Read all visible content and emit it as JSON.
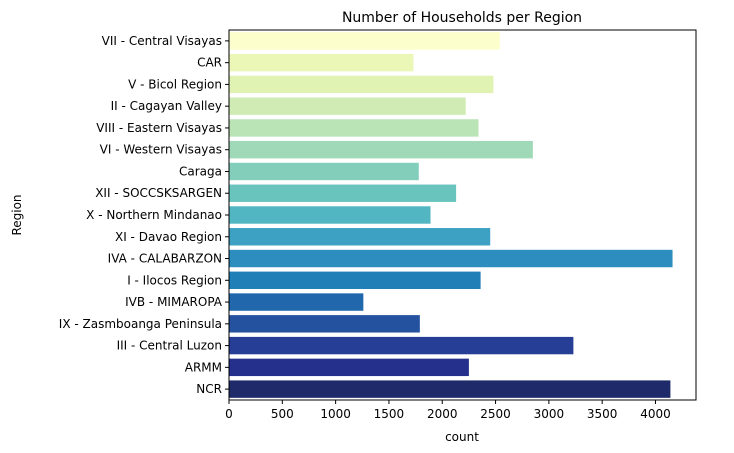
{
  "chart_data": {
    "type": "bar",
    "orientation": "horizontal",
    "title": "Number of Households per Region",
    "xlabel": "count",
    "ylabel": "Region",
    "xlim": [
      0,
      4380
    ],
    "xticks": [
      0,
      500,
      1000,
      1500,
      2000,
      2500,
      3000,
      3500,
      4000
    ],
    "grid": false,
    "legend": "none",
    "colormap": "YlGnBu",
    "categories": [
      "VII - Central Visayas",
      "CAR",
      "V - Bicol Region",
      "II - Cagayan Valley",
      "VIII - Eastern Visayas",
      "VI - Western Visayas",
      "Caraga",
      "XII - SOCCSKSARGEN",
      "X - Northern Mindanao",
      "XI - Davao Region",
      "IVA - CALABARZON",
      "I - Ilocos Region",
      "IVB - MIMAROPA",
      "IX - Zasmboanga Peninsula",
      "III - Central Luzon",
      "ARMM",
      "NCR"
    ],
    "values": [
      2540,
      1730,
      2480,
      2220,
      2340,
      2850,
      1780,
      2130,
      1890,
      2450,
      4160,
      2360,
      1260,
      1790,
      3230,
      2250,
      4140
    ],
    "colors": [
      "#fcfecb",
      "#ebf7b7",
      "#e0f3b2",
      "#d0ecb4",
      "#bae3b6",
      "#a0d9b7",
      "#83cebb",
      "#69c4be",
      "#51b6c2",
      "#3ca1c3",
      "#2c8dbe",
      "#217fb8",
      "#2167ac",
      "#24529f",
      "#263e95",
      "#24308b",
      "#1e2a69"
    ]
  }
}
